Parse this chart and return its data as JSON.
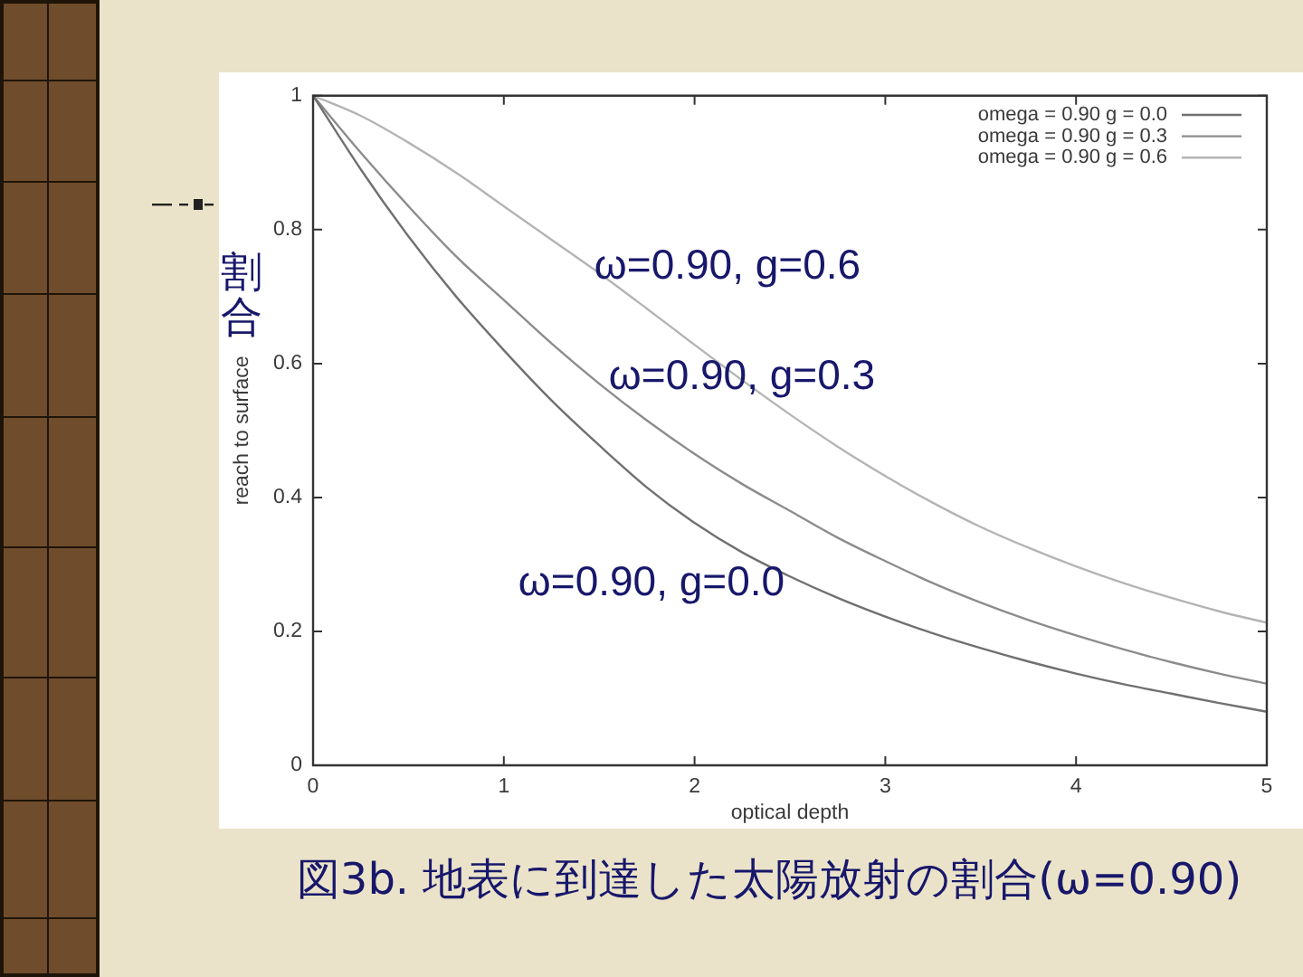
{
  "chart_data": {
    "type": "line",
    "title": "図3b. 地表に到達した太陽放射の割合(ω=0.90)",
    "xlabel": "optical depth",
    "ylabel": "reach to surface",
    "x": [
      0,
      0.25,
      0.5,
      0.75,
      1,
      1.25,
      1.5,
      1.75,
      2,
      2.25,
      2.5,
      2.75,
      3,
      3.25,
      3.5,
      3.75,
      4,
      4.25,
      4.5,
      4.75,
      5
    ],
    "series": [
      {
        "name": "omega = 0.90 g = 0.0",
        "color": "#707070",
        "values": [
          1.0,
          0.89,
          0.79,
          0.7,
          0.62,
          0.545,
          0.478,
          0.415,
          0.362,
          0.318,
          0.282,
          0.25,
          0.222,
          0.197,
          0.175,
          0.155,
          0.137,
          0.121,
          0.107,
          0.093,
          0.08
        ]
      },
      {
        "name": "omega = 0.90 g = 0.3",
        "color": "#8c8c8c",
        "values": [
          1.0,
          0.915,
          0.835,
          0.76,
          0.695,
          0.63,
          0.57,
          0.515,
          0.465,
          0.42,
          0.38,
          0.34,
          0.305,
          0.272,
          0.243,
          0.217,
          0.194,
          0.173,
          0.154,
          0.137,
          0.122
        ]
      },
      {
        "name": "omega = 0.90 g = 0.6",
        "color": "#b4b4b4",
        "values": [
          1.0,
          0.97,
          0.93,
          0.885,
          0.835,
          0.785,
          0.735,
          0.682,
          0.628,
          0.575,
          0.524,
          0.476,
          0.432,
          0.392,
          0.356,
          0.325,
          0.297,
          0.272,
          0.25,
          0.23,
          0.213
        ]
      }
    ],
    "xlim": [
      0,
      5
    ],
    "xticks": [
      0,
      1,
      2,
      3,
      4,
      5
    ],
    "ylim": [
      0,
      1
    ],
    "yticks": [
      0,
      0.2,
      0.4,
      0.6,
      0.8,
      1
    ],
    "legend": "top right",
    "marker": "none",
    "annotations": [
      "割合",
      "ω=0.90, g=0.6",
      "ω=0.90, g=0.3",
      "ω=0.90, g=0.0"
    ]
  }
}
